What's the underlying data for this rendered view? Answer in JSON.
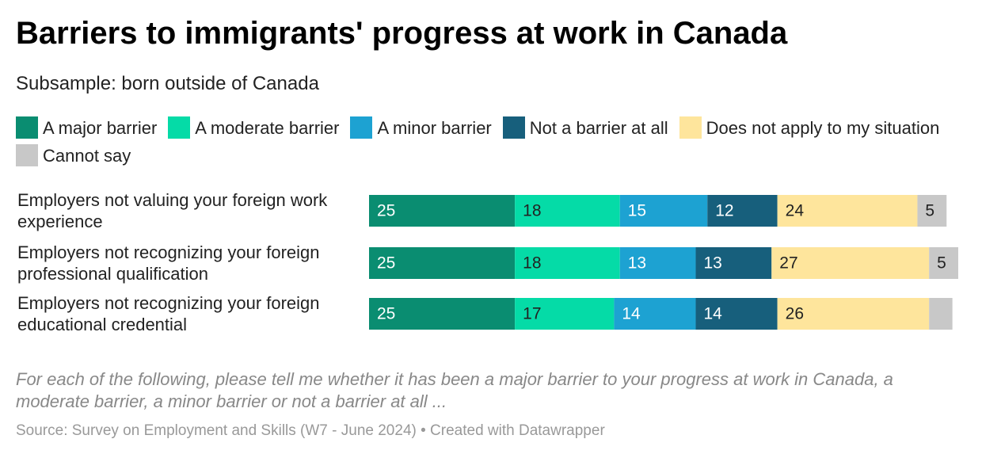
{
  "chart_data": {
    "type": "stacked-bar",
    "title": "Barriers to immigrants' progress at work in Canada",
    "subtitle": "Subsample: born outside of Canada",
    "categories": [
      "Employers not valuing your foreign work experience",
      "Employers not recognizing your foreign professional qualification",
      "Employers not recognizing your foreign educational credential"
    ],
    "series": [
      {
        "name": "A major barrier",
        "color": "#0a8d71",
        "text_color": "#ffffff",
        "values": [
          25,
          25,
          25
        ]
      },
      {
        "name": "A moderate barrier",
        "color": "#05dba7",
        "text_color": "#222222",
        "values": [
          18,
          18,
          17
        ]
      },
      {
        "name": "A minor barrier",
        "color": "#1da2d2",
        "text_color": "#ffffff",
        "values": [
          15,
          13,
          14
        ]
      },
      {
        "name": "Not a barrier at all",
        "color": "#175f7c",
        "text_color": "#ffffff",
        "values": [
          12,
          13,
          14
        ]
      },
      {
        "name": "Does not apply to my situation",
        "color": "#fee59c",
        "text_color": "#222222",
        "values": [
          24,
          27,
          26
        ]
      },
      {
        "name": "Cannot say",
        "color": "#c8c8c8",
        "text_color": "#222222",
        "values": [
          5,
          5,
          4
        ],
        "value_labels": [
          "5",
          "5",
          null
        ]
      }
    ],
    "note": "For each of the following, please tell me whether it has been a major barrier to your progress at work in Canada, a moderate barrier, a minor barrier or not a barrier at all ...",
    "source": "Source: Survey on Employment and Skills (W7 - June 2024) • Created with Datawrapper"
  }
}
